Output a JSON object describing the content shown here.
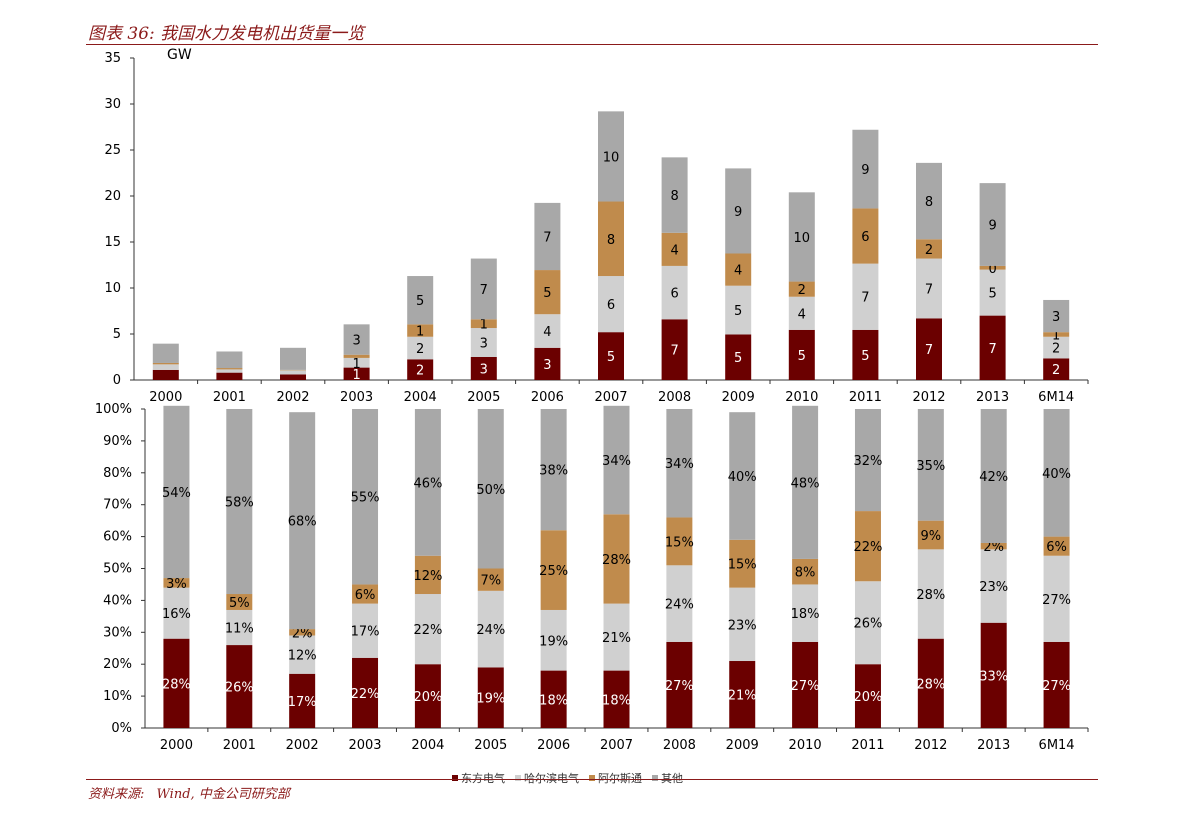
{
  "title": "图表 36:  我国水力发电机出货量一览",
  "source": {
    "label": "资料来源:",
    "text": "Wind, 中金公司研究部"
  },
  "legend": [
    {
      "label": "东方电气",
      "color": "#6b0000"
    },
    {
      "label": "哈尔滨电气",
      "color": "#d0d0d0"
    },
    {
      "label": "阿尔斯通",
      "color": "#c08b4c"
    },
    {
      "label": "其他",
      "color": "#a8a8a8"
    }
  ],
  "chart_data": [
    {
      "type": "bar",
      "stacked": true,
      "ylabel": "GW",
      "ylim": [
        0,
        35
      ],
      "yticks": [
        0,
        5,
        10,
        15,
        20,
        25,
        30,
        35
      ],
      "categories": [
        "2000",
        "2001",
        "2002",
        "2003",
        "2004",
        "2005",
        "2006",
        "2007",
        "2008",
        "2009",
        "2010",
        "2011",
        "2012",
        "2013",
        "6M14"
      ],
      "series": [
        {
          "name": "东方电气",
          "values": [
            1.1,
            0.8,
            0.6,
            1.35,
            2.25,
            2.5,
            3.5,
            5.2,
            6.6,
            4.95,
            5.45,
            5.45,
            6.7,
            7.0,
            2.35
          ],
          "labels": [
            "",
            "",
            "",
            "1",
            "2",
            "3",
            "3",
            "5",
            "7",
            "5",
            "5",
            "5",
            "7",
            "7",
            "2"
          ]
        },
        {
          "name": "哈尔滨电气",
          "values": [
            0.6,
            0.35,
            0.45,
            1.05,
            2.45,
            3.15,
            3.65,
            6.1,
            5.8,
            5.3,
            3.6,
            7.2,
            6.5,
            5.0,
            2.35
          ],
          "labels": [
            "",
            "",
            "",
            "1",
            "2",
            "3",
            "4",
            "6",
            "6",
            "5",
            "4",
            "7",
            "7",
            "5",
            "2"
          ]
        },
        {
          "name": "阿尔斯通",
          "values": [
            0.15,
            0.15,
            0.05,
            0.35,
            1.35,
            0.95,
            4.8,
            8.1,
            3.6,
            3.5,
            1.65,
            6.0,
            2.1,
            0.4,
            0.5
          ],
          "labels": [
            "",
            "",
            "",
            "",
            "1",
            "1",
            "5",
            "8",
            "4",
            "4",
            "2",
            "6",
            "2",
            "0",
            "1"
          ]
        },
        {
          "name": "其他",
          "values": [
            2.1,
            1.8,
            2.4,
            3.3,
            5.25,
            6.6,
            7.3,
            9.8,
            8.2,
            9.25,
            9.7,
            8.55,
            8.3,
            9.0,
            3.5
          ],
          "labels": [
            "",
            "",
            "",
            "3",
            "5",
            "7",
            "7",
            "10",
            "8",
            "9",
            "10",
            "9",
            "8",
            "9",
            "3"
          ]
        }
      ]
    },
    {
      "type": "bar",
      "stacked": true,
      "percent": true,
      "ylim": [
        0,
        100
      ],
      "yticks": [
        "0%",
        "10%",
        "20%",
        "30%",
        "40%",
        "50%",
        "60%",
        "70%",
        "80%",
        "90%",
        "100%"
      ],
      "categories": [
        "2000",
        "2001",
        "2002",
        "2003",
        "2004",
        "2005",
        "2006",
        "2007",
        "2008",
        "2009",
        "2010",
        "2011",
        "2012",
        "2013",
        "6M14"
      ],
      "series": [
        {
          "name": "东方电气",
          "values": [
            28,
            26,
            17,
            22,
            20,
            19,
            18,
            18,
            27,
            21,
            27,
            20,
            28,
            33,
            27
          ],
          "labels": [
            "28%",
            "26%",
            "17%",
            "22%",
            "20%",
            "19%",
            "18%",
            "18%",
            "27%",
            "21%",
            "27%",
            "20%",
            "28%",
            "33%",
            "27%"
          ]
        },
        {
          "name": "哈尔滨电气",
          "values": [
            16,
            11,
            12,
            17,
            22,
            24,
            19,
            21,
            24,
            23,
            18,
            26,
            28,
            23,
            27
          ],
          "labels": [
            "16%",
            "11%",
            "12%",
            "17%",
            "22%",
            "24%",
            "19%",
            "21%",
            "24%",
            "23%",
            "18%",
            "26%",
            "28%",
            "23%",
            "27%"
          ]
        },
        {
          "name": "阿尔斯通",
          "values": [
            3,
            5,
            2,
            6,
            12,
            7,
            25,
            28,
            15,
            15,
            8,
            22,
            9,
            2,
            6
          ],
          "labels": [
            "3%",
            "5%",
            "2%",
            "6%",
            "12%",
            "7%",
            "25%",
            "28%",
            "15%",
            "15%",
            "8%",
            "22%",
            "9%",
            "2%",
            "6%"
          ]
        },
        {
          "name": "其他",
          "values": [
            54,
            58,
            68,
            55,
            46,
            50,
            38,
            34,
            34,
            40,
            48,
            32,
            35,
            42,
            40
          ],
          "labels": [
            "54%",
            "58%",
            "68%",
            "55%",
            "46%",
            "50%",
            "38%",
            "34%",
            "34%",
            "40%",
            "48%",
            "32%",
            "35%",
            "42%",
            "40%"
          ]
        }
      ]
    }
  ]
}
